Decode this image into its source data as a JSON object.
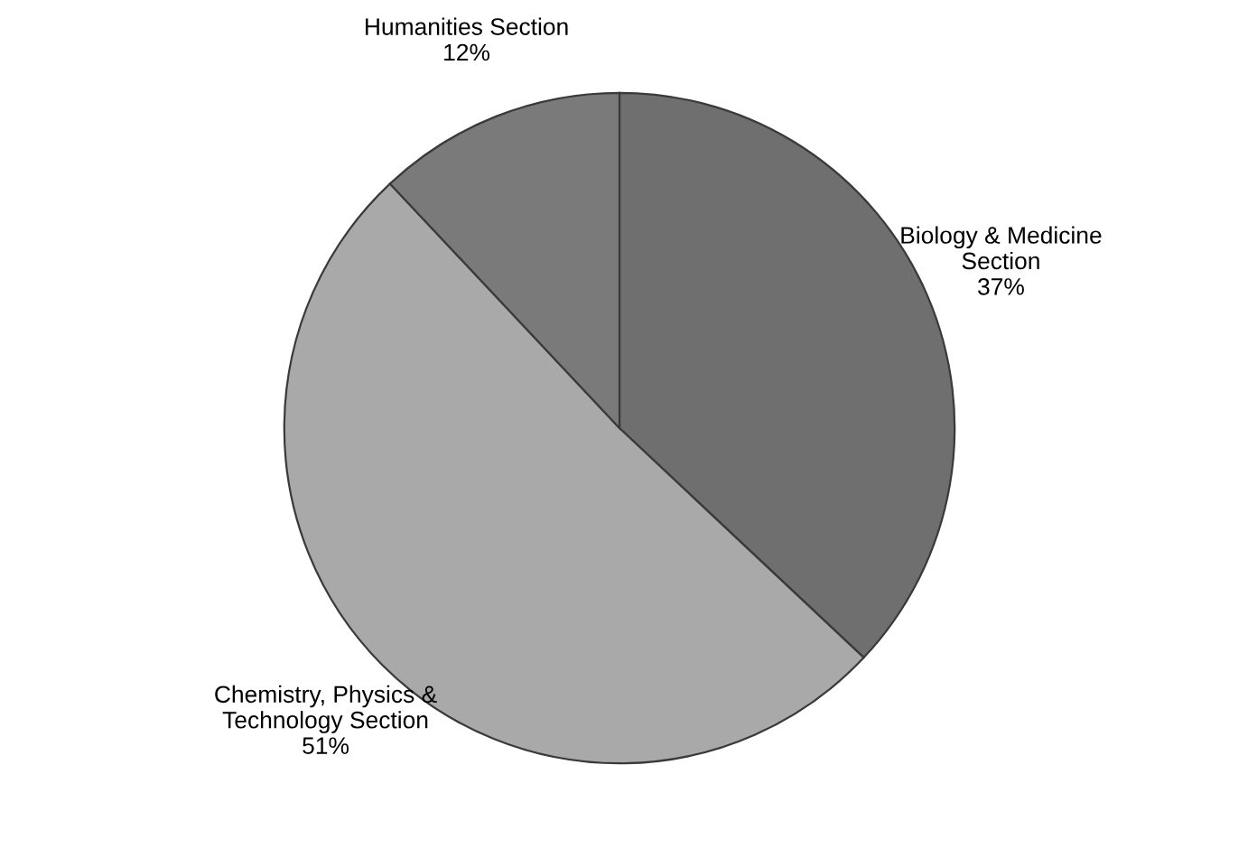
{
  "chart_data": {
    "type": "pie",
    "categories": [
      "Biology & Medicine\nSection",
      "Chemistry, Physics &\nTechnology Section",
      "Humanities Section"
    ],
    "values": [
      37,
      51,
      12
    ],
    "value_labels": [
      "37%",
      "51%",
      "12%"
    ],
    "colors": [
      "#6f6f6f",
      "#a9a9a9",
      "#7a7a7a"
    ]
  }
}
